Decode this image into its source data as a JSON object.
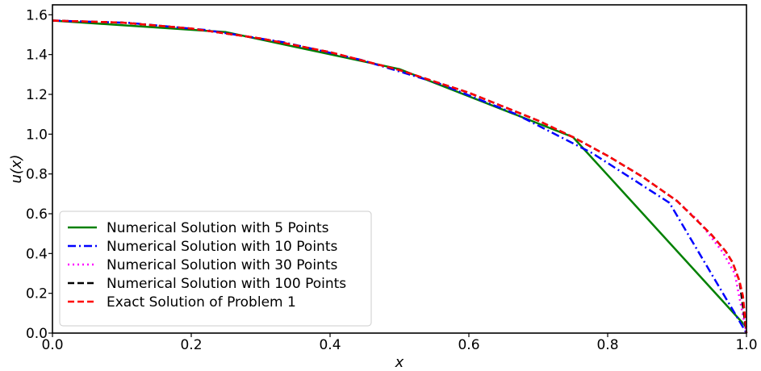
{
  "chart_data": {
    "type": "line",
    "title": "",
    "xlabel": "x",
    "ylabel": "u(x)",
    "xlim": [
      0.0,
      1.0
    ],
    "ylim": [
      0.0,
      1.65
    ],
    "xticks": [
      "0.0",
      "0.2",
      "0.4",
      "0.6",
      "0.8",
      "1.0"
    ],
    "yticks": [
      "0.0",
      "0.2",
      "0.4",
      "0.6",
      "0.8",
      "1.0",
      "1.2",
      "1.4",
      "1.6"
    ],
    "grid": false,
    "legend_position": "lower-left",
    "series": [
      {
        "name": "Numerical Solution with 5 Points",
        "color": "#008000",
        "style": "solid",
        "x": [
          0.0,
          0.25,
          0.5,
          0.75,
          1.0
        ],
        "y": [
          1.571,
          1.513,
          1.327,
          0.985,
          0.03
        ]
      },
      {
        "name": "Numerical Solution with 10 Points",
        "color": "#0000ff",
        "style": "dashdot",
        "x": [
          0.0,
          0.111,
          0.222,
          0.333,
          0.444,
          0.556,
          0.667,
          0.778,
          0.889,
          1.0
        ],
        "y": [
          1.571,
          1.559,
          1.523,
          1.462,
          1.374,
          1.256,
          1.102,
          0.904,
          0.655,
          0.0
        ]
      },
      {
        "name": "Numerical Solution with 30 Points",
        "color": "#ff00ff",
        "style": "dotted",
        "x": [
          0.0,
          0.1,
          0.2,
          0.3,
          0.4,
          0.5,
          0.6,
          0.7,
          0.75,
          0.8,
          0.85,
          0.9,
          0.931,
          0.966,
          0.983,
          1.0
        ],
        "y": [
          1.571,
          1.561,
          1.531,
          1.481,
          1.412,
          1.322,
          1.208,
          1.068,
          0.985,
          0.891,
          0.786,
          0.664,
          0.563,
          0.406,
          0.3,
          0.0
        ]
      },
      {
        "name": "Numerical Solution with 100 Points",
        "color": "#000000",
        "style": "dashed",
        "x": [
          0.0,
          0.1,
          0.2,
          0.3,
          0.4,
          0.5,
          0.6,
          0.7,
          0.75,
          0.8,
          0.85,
          0.9,
          0.95,
          0.97,
          0.98,
          0.99,
          1.0
        ],
        "y": [
          1.571,
          1.561,
          1.531,
          1.481,
          1.412,
          1.322,
          1.208,
          1.068,
          0.985,
          0.891,
          0.786,
          0.664,
          0.493,
          0.411,
          0.355,
          0.261,
          0.0
        ]
      },
      {
        "name": "Exact Solution of Problem 1",
        "color": "#ff0000",
        "style": "dashed",
        "x": [
          0.0,
          0.1,
          0.2,
          0.3,
          0.4,
          0.5,
          0.6,
          0.7,
          0.75,
          0.8,
          0.85,
          0.9,
          0.95,
          0.97,
          0.98,
          0.99,
          0.995,
          1.0
        ],
        "y": [
          1.571,
          1.561,
          1.531,
          1.481,
          1.412,
          1.322,
          1.208,
          1.068,
          0.985,
          0.891,
          0.786,
          0.664,
          0.493,
          0.411,
          0.355,
          0.261,
          0.186,
          0.0
        ]
      }
    ]
  }
}
